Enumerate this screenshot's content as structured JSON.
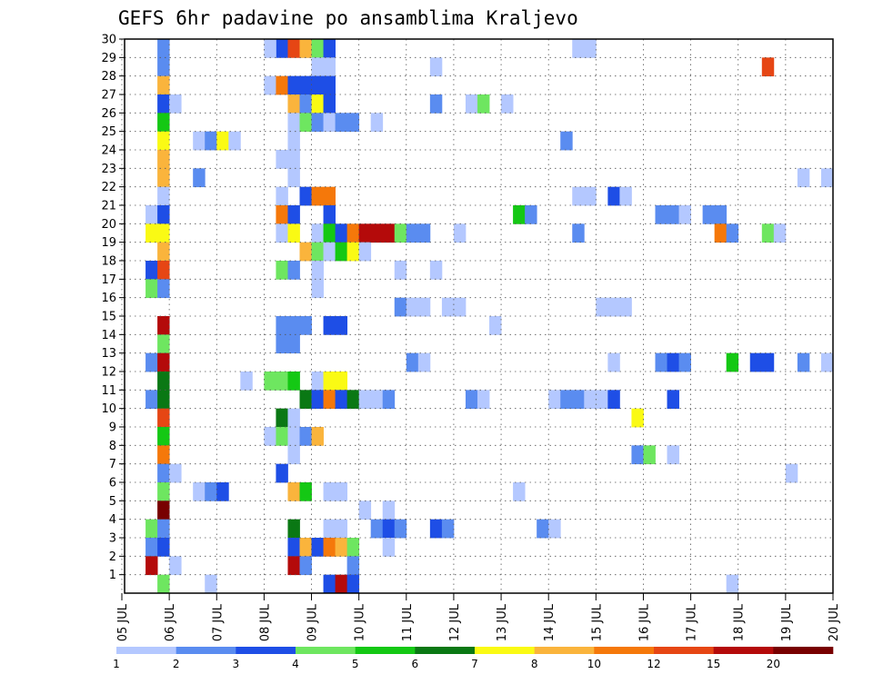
{
  "chart_data": {
    "type": "heatmap",
    "title": "GEFS 6hr padavine po ansamblima Kraljevo",
    "xlabel": "",
    "ylabel": "",
    "x_tick_labels": [
      "05 JUL",
      "06 JUL",
      "07 JUL",
      "08 JUL",
      "09 JUL",
      "10 JUL",
      "11 JUL",
      "12 JUL",
      "13 JUL",
      "14 JUL",
      "15 JUL",
      "16 JUL",
      "17 JUL",
      "18 JUL",
      "19 JUL",
      "20 JUL"
    ],
    "y_tick_labels": [
      "1",
      "2",
      "3",
      "4",
      "5",
      "6",
      "7",
      "8",
      "9",
      "10",
      "11",
      "12",
      "13",
      "14",
      "15",
      "16",
      "17",
      "18",
      "19",
      "20",
      "21",
      "22",
      "23",
      "24",
      "25",
      "26",
      "27",
      "28",
      "29",
      "30"
    ],
    "x_range_days": [
      0,
      15
    ],
    "y_range": [
      0,
      30
    ],
    "grid": true,
    "legend_position": "bottom",
    "colorbar": {
      "labels": [
        "1",
        "2",
        "3",
        "4",
        "5",
        "6",
        "7",
        "8",
        "10",
        "12",
        "15",
        "20"
      ],
      "colors": [
        "#b4c8ff",
        "#5a8cf0",
        "#1e4ee6",
        "#6ee660",
        "#14c814",
        "#0a7814",
        "#fafa14",
        "#fab43c",
        "#f5780a",
        "#e64614",
        "#b40a0a",
        "#780000"
      ]
    },
    "cells": [
      {
        "m": 30,
        "d": 4,
        "c": "#5a8cf0"
      },
      {
        "m": 30,
        "d": 4.25,
        "c": "#1e4ee6"
      },
      {
        "m": 30,
        "d": 3.75,
        "c": "#b4c8ff"
      },
      {
        "m": 30,
        "d": 3.25,
        "c": "#1e4ee6"
      },
      {
        "m": 30,
        "d": 3.5,
        "c": "#e64614"
      },
      {
        "m": 30,
        "d": 3.75,
        "c": "#fab43c"
      },
      {
        "m": 30,
        "d": 4,
        "c": "#6ee660"
      },
      {
        "m": 30,
        "d": 4.25,
        "c": "#1e4ee6"
      },
      {
        "m": 30,
        "d": 9.5,
        "c": "#b4c8ff"
      },
      {
        "m": 30,
        "d": 9.75,
        "c": "#b4c8ff"
      },
      {
        "m": 30,
        "d": 3,
        "c": "#b4c8ff"
      },
      {
        "m": 30,
        "d": 0.75,
        "c": "#5a8cf0"
      },
      {
        "m": 29,
        "d": 0.75,
        "c": "#5a8cf0"
      },
      {
        "m": 29,
        "d": 4,
        "c": "#b4c8ff"
      },
      {
        "m": 29,
        "d": 4.25,
        "c": "#b4c8ff"
      },
      {
        "m": 29,
        "d": 6.5,
        "c": "#b4c8ff"
      },
      {
        "m": 29,
        "d": 13.5,
        "c": "#e64614"
      },
      {
        "m": 28,
        "d": 0.75,
        "c": "#fab43c"
      },
      {
        "m": 28,
        "d": 3,
        "c": "#b4c8ff"
      },
      {
        "m": 28,
        "d": 3.25,
        "c": "#f5780a"
      },
      {
        "m": 28,
        "d": 3.5,
        "c": "#1e4ee6"
      },
      {
        "m": 28,
        "d": 3.75,
        "c": "#1e4ee6"
      },
      {
        "m": 28,
        "d": 4,
        "c": "#1e4ee6"
      },
      {
        "m": 28,
        "d": 4.25,
        "c": "#1e4ee6"
      },
      {
        "m": 27,
        "d": 0.75,
        "c": "#1e4ee6"
      },
      {
        "m": 27,
        "d": 1,
        "c": "#b4c8ff"
      },
      {
        "m": 27,
        "d": 3.5,
        "c": "#fab43c"
      },
      {
        "m": 27,
        "d": 3.75,
        "c": "#5a8cf0"
      },
      {
        "m": 27,
        "d": 4,
        "c": "#fafa14"
      },
      {
        "m": 27,
        "d": 4.25,
        "c": "#1e4ee6"
      },
      {
        "m": 27,
        "d": 6.5,
        "c": "#5a8cf0"
      },
      {
        "m": 27,
        "d": 7.25,
        "c": "#b4c8ff"
      },
      {
        "m": 27,
        "d": 7.5,
        "c": "#6ee660"
      },
      {
        "m": 27,
        "d": 8,
        "c": "#b4c8ff"
      },
      {
        "m": 26,
        "d": 0.75,
        "c": "#14c814"
      },
      {
        "m": 26,
        "d": 3.5,
        "c": "#b4c8ff"
      },
      {
        "m": 26,
        "d": 3.75,
        "c": "#6ee660"
      },
      {
        "m": 26,
        "d": 4,
        "c": "#5a8cf0"
      },
      {
        "m": 26,
        "d": 4.25,
        "c": "#b4c8ff"
      },
      {
        "m": 26,
        "d": 4.5,
        "c": "#5a8cf0"
      },
      {
        "m": 26,
        "d": 4.75,
        "c": "#5a8cf0"
      },
      {
        "m": 26,
        "d": 5.25,
        "c": "#b4c8ff"
      },
      {
        "m": 25,
        "d": 0.75,
        "c": "#fafa14"
      },
      {
        "m": 25,
        "d": 1.5,
        "c": "#b4c8ff"
      },
      {
        "m": 25,
        "d": 1.75,
        "c": "#5a8cf0"
      },
      {
        "m": 25,
        "d": 2,
        "c": "#fafa14"
      },
      {
        "m": 25,
        "d": 2.25,
        "c": "#b4c8ff"
      },
      {
        "m": 25,
        "d": 3.5,
        "c": "#b4c8ff"
      },
      {
        "m": 25,
        "d": 9.25,
        "c": "#5a8cf0"
      },
      {
        "m": 24,
        "d": 0.75,
        "c": "#fab43c"
      },
      {
        "m": 24,
        "d": 3.25,
        "c": "#b4c8ff"
      },
      {
        "m": 24,
        "d": 3.5,
        "c": "#b4c8ff"
      },
      {
        "m": 23,
        "d": 0.75,
        "c": "#fab43c"
      },
      {
        "m": 23,
        "d": 1.5,
        "c": "#5a8cf0"
      },
      {
        "m": 23,
        "d": 3.5,
        "c": "#b4c8ff"
      },
      {
        "m": 23,
        "d": 14.25,
        "c": "#b4c8ff"
      },
      {
        "m": 23,
        "d": 14.75,
        "c": "#b4c8ff"
      },
      {
        "m": 22,
        "d": 0.75,
        "c": "#b4c8ff"
      },
      {
        "m": 22,
        "d": 3.25,
        "c": "#b4c8ff"
      },
      {
        "m": 22,
        "d": 3.75,
        "c": "#1e4ee6"
      },
      {
        "m": 22,
        "d": 4,
        "c": "#f5780a"
      },
      {
        "m": 22,
        "d": 4.25,
        "c": "#f5780a"
      },
      {
        "m": 22,
        "d": 9.5,
        "c": "#b4c8ff"
      },
      {
        "m": 22,
        "d": 9.75,
        "c": "#b4c8ff"
      },
      {
        "m": 22,
        "d": 10.25,
        "c": "#1e4ee6"
      },
      {
        "m": 22,
        "d": 10.5,
        "c": "#b4c8ff"
      },
      {
        "m": 21,
        "d": 0.5,
        "c": "#b4c8ff"
      },
      {
        "m": 21,
        "d": 0.75,
        "c": "#1e4ee6"
      },
      {
        "m": 21,
        "d": 3.25,
        "c": "#f5780a"
      },
      {
        "m": 21,
        "d": 3.5,
        "c": "#1e4ee6"
      },
      {
        "m": 21,
        "d": 4.25,
        "c": "#1e4ee6"
      },
      {
        "m": 21,
        "d": 8.25,
        "c": "#14c814"
      },
      {
        "m": 21,
        "d": 8.5,
        "c": "#5a8cf0"
      },
      {
        "m": 21,
        "d": 11.25,
        "c": "#5a8cf0"
      },
      {
        "m": 21,
        "d": 11.5,
        "c": "#5a8cf0"
      },
      {
        "m": 21,
        "d": 11.75,
        "c": "#b4c8ff"
      },
      {
        "m": 21,
        "d": 12.25,
        "c": "#5a8cf0"
      },
      {
        "m": 21,
        "d": 12.5,
        "c": "#5a8cf0"
      },
      {
        "m": 20,
        "d": 0.5,
        "c": "#fafa14"
      },
      {
        "m": 20,
        "d": 0.75,
        "c": "#fafa14"
      },
      {
        "m": 20,
        "d": 3.25,
        "c": "#b4c8ff"
      },
      {
        "m": 20,
        "d": 3.5,
        "c": "#fafa14"
      },
      {
        "m": 20,
        "d": 4,
        "c": "#b4c8ff"
      },
      {
        "m": 20,
        "d": 4.25,
        "c": "#14c814"
      },
      {
        "m": 20,
        "d": 4.5,
        "c": "#1e4ee6"
      },
      {
        "m": 20,
        "d": 4.75,
        "c": "#f5780a"
      },
      {
        "m": 20,
        "d": 5,
        "c": "#b40a0a"
      },
      {
        "m": 20,
        "d": 5.25,
        "c": "#b40a0a"
      },
      {
        "m": 20,
        "d": 5.5,
        "c": "#b40a0a"
      },
      {
        "m": 20,
        "d": 5.75,
        "c": "#6ee660"
      },
      {
        "m": 20,
        "d": 6,
        "c": "#5a8cf0"
      },
      {
        "m": 20,
        "d": 6.25,
        "c": "#5a8cf0"
      },
      {
        "m": 20,
        "d": 7,
        "c": "#b4c8ff"
      },
      {
        "m": 20,
        "d": 9.5,
        "c": "#5a8cf0"
      },
      {
        "m": 20,
        "d": 12.5,
        "c": "#f5780a"
      },
      {
        "m": 20,
        "d": 12.75,
        "c": "#5a8cf0"
      },
      {
        "m": 20,
        "d": 13.5,
        "c": "#6ee660"
      },
      {
        "m": 20,
        "d": 13.75,
        "c": "#b4c8ff"
      },
      {
        "m": 19,
        "d": 0.75,
        "c": "#fab43c"
      },
      {
        "m": 19,
        "d": 3.75,
        "c": "#fab43c"
      },
      {
        "m": 19,
        "d": 4,
        "c": "#6ee660"
      },
      {
        "m": 19,
        "d": 4.25,
        "c": "#b4c8ff"
      },
      {
        "m": 19,
        "d": 4.5,
        "c": "#14c814"
      },
      {
        "m": 19,
        "d": 4.75,
        "c": "#fafa14"
      },
      {
        "m": 19,
        "d": 5,
        "c": "#b4c8ff"
      },
      {
        "m": 18,
        "d": 0.5,
        "c": "#1e4ee6"
      },
      {
        "m": 18,
        "d": 0.75,
        "c": "#e64614"
      },
      {
        "m": 18,
        "d": 3.25,
        "c": "#6ee660"
      },
      {
        "m": 18,
        "d": 3.5,
        "c": "#5a8cf0"
      },
      {
        "m": 18,
        "d": 4,
        "c": "#b4c8ff"
      },
      {
        "m": 18,
        "d": 5.75,
        "c": "#b4c8ff"
      },
      {
        "m": 18,
        "d": 6.5,
        "c": "#b4c8ff"
      },
      {
        "m": 17,
        "d": 0.5,
        "c": "#6ee660"
      },
      {
        "m": 17,
        "d": 0.75,
        "c": "#5a8cf0"
      },
      {
        "m": 17,
        "d": 4,
        "c": "#b4c8ff"
      },
      {
        "m": 16,
        "d": 5.75,
        "c": "#5a8cf0"
      },
      {
        "m": 16,
        "d": 6,
        "c": "#b4c8ff"
      },
      {
        "m": 16,
        "d": 6.25,
        "c": "#b4c8ff"
      },
      {
        "m": 16,
        "d": 6.75,
        "c": "#b4c8ff"
      },
      {
        "m": 16,
        "d": 7,
        "c": "#b4c8ff"
      },
      {
        "m": 16,
        "d": 10,
        "c": "#b4c8ff"
      },
      {
        "m": 16,
        "d": 10.25,
        "c": "#b4c8ff"
      },
      {
        "m": 16,
        "d": 10.5,
        "c": "#b4c8ff"
      },
      {
        "m": 15,
        "d": 0.75,
        "c": "#b40a0a"
      },
      {
        "m": 15,
        "d": 3.25,
        "c": "#5a8cf0"
      },
      {
        "m": 15,
        "d": 3.5,
        "c": "#5a8cf0"
      },
      {
        "m": 15,
        "d": 3.75,
        "c": "#5a8cf0"
      },
      {
        "m": 15,
        "d": 4.25,
        "c": "#1e4ee6"
      },
      {
        "m": 15,
        "d": 4.5,
        "c": "#1e4ee6"
      },
      {
        "m": 15,
        "d": 7.75,
        "c": "#b4c8ff"
      },
      {
        "m": 14,
        "d": 0.75,
        "c": "#6ee660"
      },
      {
        "m": 14,
        "d": 3.25,
        "c": "#5a8cf0"
      },
      {
        "m": 14,
        "d": 3.5,
        "c": "#5a8cf0"
      },
      {
        "m": 13,
        "d": 0.5,
        "c": "#5a8cf0"
      },
      {
        "m": 13,
        "d": 0.75,
        "c": "#b40a0a"
      },
      {
        "m": 13,
        "d": 6,
        "c": "#5a8cf0"
      },
      {
        "m": 13,
        "d": 6.25,
        "c": "#b4c8ff"
      },
      {
        "m": 13,
        "d": 10.25,
        "c": "#b4c8ff"
      },
      {
        "m": 13,
        "d": 11.25,
        "c": "#5a8cf0"
      },
      {
        "m": 13,
        "d": 11.5,
        "c": "#1e4ee6"
      },
      {
        "m": 13,
        "d": 11.75,
        "c": "#5a8cf0"
      },
      {
        "m": 13,
        "d": 12.75,
        "c": "#14c814"
      },
      {
        "m": 13,
        "d": 13.25,
        "c": "#1e4ee6"
      },
      {
        "m": 13,
        "d": 13.5,
        "c": "#1e4ee6"
      },
      {
        "m": 13,
        "d": 14.25,
        "c": "#5a8cf0"
      },
      {
        "m": 13,
        "d": 14.75,
        "c": "#b4c8ff"
      },
      {
        "m": 12,
        "d": 0.75,
        "c": "#0a7814"
      },
      {
        "m": 12,
        "d": 2.5,
        "c": "#b4c8ff"
      },
      {
        "m": 12,
        "d": 3,
        "c": "#6ee660"
      },
      {
        "m": 12,
        "d": 3.25,
        "c": "#6ee660"
      },
      {
        "m": 12,
        "d": 3.5,
        "c": "#14c814"
      },
      {
        "m": 12,
        "d": 4,
        "c": "#b4c8ff"
      },
      {
        "m": 12,
        "d": 4.25,
        "c": "#fafa14"
      },
      {
        "m": 12,
        "d": 4.5,
        "c": "#fafa14"
      },
      {
        "m": 11,
        "d": 0.5,
        "c": "#5a8cf0"
      },
      {
        "m": 11,
        "d": 0.75,
        "c": "#0a7814"
      },
      {
        "m": 11,
        "d": 3.75,
        "c": "#0a7814"
      },
      {
        "m": 11,
        "d": 4,
        "c": "#1e4ee6"
      },
      {
        "m": 11,
        "d": 4.25,
        "c": "#f5780a"
      },
      {
        "m": 11,
        "d": 4.5,
        "c": "#1e4ee6"
      },
      {
        "m": 11,
        "d": 4.75,
        "c": "#0a7814"
      },
      {
        "m": 11,
        "d": 5,
        "c": "#b4c8ff"
      },
      {
        "m": 11,
        "d": 5.25,
        "c": "#b4c8ff"
      },
      {
        "m": 11,
        "d": 5.5,
        "c": "#5a8cf0"
      },
      {
        "m": 11,
        "d": 7.25,
        "c": "#5a8cf0"
      },
      {
        "m": 11,
        "d": 7.5,
        "c": "#b4c8ff"
      },
      {
        "m": 11,
        "d": 9,
        "c": "#b4c8ff"
      },
      {
        "m": 11,
        "d": 9.25,
        "c": "#5a8cf0"
      },
      {
        "m": 11,
        "d": 9.5,
        "c": "#5a8cf0"
      },
      {
        "m": 11,
        "d": 9.75,
        "c": "#b4c8ff"
      },
      {
        "m": 11,
        "d": 10,
        "c": "#b4c8ff"
      },
      {
        "m": 11,
        "d": 10.25,
        "c": "#1e4ee6"
      },
      {
        "m": 11,
        "d": 11.5,
        "c": "#1e4ee6"
      },
      {
        "m": 10,
        "d": 0.75,
        "c": "#e64614"
      },
      {
        "m": 10,
        "d": 3.25,
        "c": "#0a7814"
      },
      {
        "m": 10,
        "d": 3.5,
        "c": "#b4c8ff"
      },
      {
        "m": 10,
        "d": 10.75,
        "c": "#fafa14"
      },
      {
        "m": 9,
        "d": 0.75,
        "c": "#14c814"
      },
      {
        "m": 9,
        "d": 3,
        "c": "#b4c8ff"
      },
      {
        "m": 9,
        "d": 3.25,
        "c": "#6ee660"
      },
      {
        "m": 9,
        "d": 3.5,
        "c": "#b4c8ff"
      },
      {
        "m": 9,
        "d": 3.75,
        "c": "#5a8cf0"
      },
      {
        "m": 9,
        "d": 4,
        "c": "#fab43c"
      },
      {
        "m": 8,
        "d": 0.75,
        "c": "#f5780a"
      },
      {
        "m": 8,
        "d": 3.5,
        "c": "#b4c8ff"
      },
      {
        "m": 8,
        "d": 10.75,
        "c": "#5a8cf0"
      },
      {
        "m": 8,
        "d": 11,
        "c": "#6ee660"
      },
      {
        "m": 8,
        "d": 11.5,
        "c": "#b4c8ff"
      },
      {
        "m": 7,
        "d": 0.75,
        "c": "#5a8cf0"
      },
      {
        "m": 7,
        "d": 1,
        "c": "#b4c8ff"
      },
      {
        "m": 7,
        "d": 3.25,
        "c": "#1e4ee6"
      },
      {
        "m": 7,
        "d": 14,
        "c": "#b4c8ff"
      },
      {
        "m": 6,
        "d": 0.75,
        "c": "#6ee660"
      },
      {
        "m": 6,
        "d": 1.5,
        "c": "#b4c8ff"
      },
      {
        "m": 6,
        "d": 1.75,
        "c": "#5a8cf0"
      },
      {
        "m": 6,
        "d": 2,
        "c": "#1e4ee6"
      },
      {
        "m": 6,
        "d": 3.5,
        "c": "#fab43c"
      },
      {
        "m": 6,
        "d": 3.75,
        "c": "#14c814"
      },
      {
        "m": 6,
        "d": 4.25,
        "c": "#b4c8ff"
      },
      {
        "m": 6,
        "d": 4.5,
        "c": "#b4c8ff"
      },
      {
        "m": 6,
        "d": 8.25,
        "c": "#b4c8ff"
      },
      {
        "m": 5,
        "d": 0.75,
        "c": "#780000"
      },
      {
        "m": 5,
        "d": 5,
        "c": "#b4c8ff"
      },
      {
        "m": 5,
        "d": 5.5,
        "c": "#b4c8ff"
      },
      {
        "m": 4,
        "d": 0.5,
        "c": "#6ee660"
      },
      {
        "m": 4,
        "d": 0.75,
        "c": "#5a8cf0"
      },
      {
        "m": 4,
        "d": 3.5,
        "c": "#0a7814"
      },
      {
        "m": 4,
        "d": 4.25,
        "c": "#b4c8ff"
      },
      {
        "m": 4,
        "d": 4.5,
        "c": "#b4c8ff"
      },
      {
        "m": 4,
        "d": 5.25,
        "c": "#5a8cf0"
      },
      {
        "m": 4,
        "d": 5.5,
        "c": "#1e4ee6"
      },
      {
        "m": 4,
        "d": 5.75,
        "c": "#5a8cf0"
      },
      {
        "m": 4,
        "d": 6.5,
        "c": "#1e4ee6"
      },
      {
        "m": 4,
        "d": 6.75,
        "c": "#5a8cf0"
      },
      {
        "m": 4,
        "d": 8.75,
        "c": "#5a8cf0"
      },
      {
        "m": 4,
        "d": 9,
        "c": "#b4c8ff"
      },
      {
        "m": 3,
        "d": 0.5,
        "c": "#5a8cf0"
      },
      {
        "m": 3,
        "d": 0.75,
        "c": "#1e4ee6"
      },
      {
        "m": 3,
        "d": 3.5,
        "c": "#1e4ee6"
      },
      {
        "m": 3,
        "d": 3.75,
        "c": "#fab43c"
      },
      {
        "m": 3,
        "d": 4,
        "c": "#1e4ee6"
      },
      {
        "m": 3,
        "d": 4.25,
        "c": "#f5780a"
      },
      {
        "m": 3,
        "d": 4.5,
        "c": "#fab43c"
      },
      {
        "m": 3,
        "d": 4.75,
        "c": "#6ee660"
      },
      {
        "m": 3,
        "d": 5.5,
        "c": "#b4c8ff"
      },
      {
        "m": 2,
        "d": 0.5,
        "c": "#b40a0a"
      },
      {
        "m": 2,
        "d": 1,
        "c": "#b4c8ff"
      },
      {
        "m": 2,
        "d": 3.5,
        "c": "#b40a0a"
      },
      {
        "m": 2,
        "d": 3.75,
        "c": "#5a8cf0"
      },
      {
        "m": 2,
        "d": 4.75,
        "c": "#5a8cf0"
      },
      {
        "m": 1,
        "d": 0.75,
        "c": "#6ee660"
      },
      {
        "m": 1,
        "d": 1.75,
        "c": "#b4c8ff"
      },
      {
        "m": 1,
        "d": 4.25,
        "c": "#1e4ee6"
      },
      {
        "m": 1,
        "d": 4.5,
        "c": "#b40a0a"
      },
      {
        "m": 1,
        "d": 4.75,
        "c": "#1e4ee6"
      },
      {
        "m": 1,
        "d": 12.75,
        "c": "#b4c8ff"
      }
    ]
  }
}
